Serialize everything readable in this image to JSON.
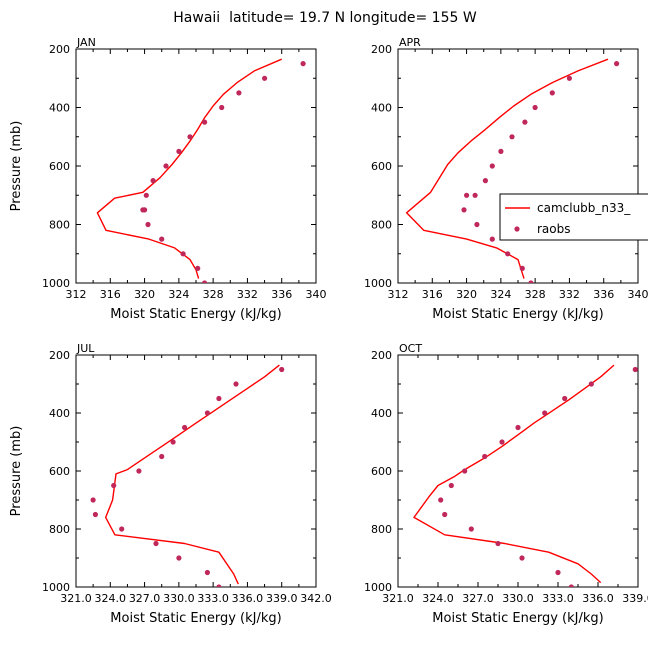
{
  "figure_title": "Hawaii  latitude= 19.7 N longitude= 155 W",
  "legend": {
    "model_label": "camclubb_n33_",
    "obs_label": "raobs"
  },
  "colors": {
    "model": "#ff0000",
    "obs": "#c0285a",
    "axis": "#000000"
  },
  "chart_data": [
    {
      "type": "line",
      "panel": "JAN",
      "title": "JAN",
      "xlabel": "Moist Static Energy (kJ/kg)",
      "ylabel": "Pressure (mb)",
      "xlim": [
        312,
        340
      ],
      "ylim": [
        1000,
        200
      ],
      "xticks": [
        312,
        316,
        320,
        324,
        328,
        332,
        336,
        340
      ],
      "xtick_labels": [
        "312",
        "316",
        "320",
        "324",
        "328",
        "332",
        "336",
        "340"
      ],
      "yticks": [
        200,
        400,
        600,
        800,
        1000
      ],
      "ytick_labels": [
        "200",
        "400",
        "600",
        "800",
        "1000"
      ],
      "series": [
        {
          "name": "camclubb_n33_",
          "kind": "line",
          "x": [
            336.0,
            332.8,
            330.8,
            329.2,
            328.0,
            327.0,
            326.2,
            325.3,
            324.3,
            323.2,
            321.8,
            319.8,
            316.5,
            314.5,
            315.5,
            320.5,
            323.5,
            325.3,
            326.0,
            326.3
          ],
          "y": [
            235,
            275,
            315,
            355,
            395,
            435,
            475,
            515,
            555,
            595,
            640,
            690,
            710,
            760,
            820,
            850,
            880,
            920,
            955,
            985
          ]
        },
        {
          "name": "raobs",
          "kind": "scatter",
          "x": [
            338.5,
            334.0,
            331.0,
            329.0,
            327.0,
            325.3,
            324.0,
            322.5,
            321.0,
            320.2,
            320.0,
            319.8,
            320.4,
            322.0,
            324.5,
            326.2,
            327.0
          ],
          "y": [
            250,
            300,
            350,
            400,
            450,
            500,
            550,
            600,
            650,
            700,
            750,
            750,
            800,
            850,
            900,
            950,
            1000
          ]
        }
      ]
    },
    {
      "type": "line",
      "panel": "APR",
      "title": "APR",
      "xlabel": "Moist Static Energy (kJ/kg)",
      "ylabel": "",
      "xlim": [
        312,
        340
      ],
      "ylim": [
        1000,
        200
      ],
      "xticks": [
        312,
        316,
        320,
        324,
        328,
        332,
        336,
        340
      ],
      "xtick_labels": [
        "312",
        "316",
        "320",
        "324",
        "328",
        "332",
        "336",
        "340"
      ],
      "yticks": [
        200,
        400,
        600,
        800,
        1000
      ],
      "ytick_labels": [
        "200",
        "400",
        "600",
        "800",
        "1000"
      ],
      "series": [
        {
          "name": "camclubb_n33_",
          "kind": "line",
          "x": [
            336.5,
            333.0,
            330.0,
            327.5,
            325.5,
            323.8,
            322.2,
            320.5,
            319.0,
            317.8,
            315.8,
            313.0,
            315.0,
            320.0,
            323.5,
            326.0,
            326.7
          ],
          "y": [
            235,
            275,
            315,
            355,
            395,
            435,
            475,
            515,
            555,
            595,
            690,
            760,
            820,
            850,
            880,
            920,
            985
          ]
        },
        {
          "name": "raobs",
          "kind": "scatter",
          "x": [
            337.5,
            332.0,
            330.0,
            328.0,
            326.8,
            325.3,
            324.0,
            323.0,
            322.2,
            321.0,
            320.0,
            319.7,
            321.2,
            323.0,
            324.8,
            326.5,
            327.5
          ],
          "y": [
            250,
            300,
            350,
            400,
            450,
            500,
            550,
            600,
            650,
            700,
            700,
            750,
            800,
            850,
            900,
            950,
            1000
          ]
        }
      ]
    },
    {
      "type": "line",
      "panel": "JUL",
      "title": "JUL",
      "xlabel": "Moist Static Energy (kJ/kg)",
      "ylabel": "Pressure (mb)",
      "xlim": [
        321,
        342
      ],
      "ylim": [
        1000,
        200
      ],
      "xticks": [
        321,
        324,
        327,
        330,
        333,
        336,
        339,
        342
      ],
      "xtick_labels": [
        "321.0",
        "324.0",
        "327.0",
        "330.0",
        "333.0",
        "336.0",
        "339.0",
        "342.0"
      ],
      "yticks": [
        200,
        400,
        600,
        800,
        1000
      ],
      "ytick_labels": [
        "200",
        "400",
        "600",
        "800",
        "1000"
      ],
      "series": [
        {
          "name": "camclubb_n33_",
          "kind": "line",
          "x": [
            338.8,
            337.5,
            336.0,
            334.5,
            333.0,
            331.5,
            330.0,
            328.5,
            327.0,
            325.5,
            324.5,
            324.2,
            323.6,
            324.4,
            330.5,
            333.5,
            334.8,
            335.2
          ],
          "y": [
            235,
            275,
            315,
            355,
            395,
            435,
            475,
            515,
            555,
            595,
            610,
            700,
            760,
            820,
            850,
            880,
            955,
            990
          ]
        },
        {
          "name": "raobs",
          "kind": "scatter",
          "x": [
            339.0,
            335.0,
            333.5,
            332.5,
            330.5,
            329.5,
            328.5,
            326.5,
            324.3,
            322.5,
            322.7,
            325.0,
            328.0,
            330.0,
            332.5,
            333.5
          ],
          "y": [
            250,
            300,
            350,
            400,
            450,
            500,
            550,
            600,
            650,
            700,
            750,
            800,
            850,
            900,
            950,
            1000
          ]
        }
      ]
    },
    {
      "type": "line",
      "panel": "OCT",
      "title": "OCT",
      "xlabel": "Moist Static Energy (kJ/kg)",
      "ylabel": "",
      "xlim": [
        321,
        339
      ],
      "ylim": [
        1000,
        200
      ],
      "xticks": [
        321,
        324,
        327,
        330,
        333,
        336,
        339
      ],
      "xtick_labels": [
        "321.0",
        "324.0",
        "327.0",
        "330.0",
        "333.0",
        "336.0",
        "339.0"
      ],
      "yticks": [
        200,
        400,
        600,
        800,
        1000
      ],
      "ytick_labels": [
        "200",
        "400",
        "600",
        "800",
        "1000"
      ],
      "series": [
        {
          "name": "camclubb_n33_",
          "kind": "line",
          "x": [
            337.2,
            336.2,
            335.0,
            333.8,
            332.5,
            331.2,
            330.0,
            328.8,
            327.5,
            326.0,
            325.2,
            324.0,
            323.3,
            322.2,
            324.5,
            329.0,
            332.3,
            334.5,
            335.5,
            336.2
          ],
          "y": [
            235,
            275,
            315,
            355,
            395,
            435,
            475,
            515,
            555,
            595,
            620,
            650,
            690,
            760,
            820,
            850,
            880,
            920,
            955,
            985
          ]
        },
        {
          "name": "raobs",
          "kind": "scatter",
          "x": [
            338.8,
            335.5,
            333.5,
            332.0,
            330.0,
            328.8,
            327.5,
            326.0,
            325.0,
            324.2,
            324.5,
            326.5,
            328.5,
            330.3,
            333.0,
            334.0
          ],
          "y": [
            250,
            300,
            350,
            400,
            450,
            500,
            550,
            600,
            650,
            700,
            750,
            800,
            850,
            900,
            950,
            1000
          ]
        }
      ]
    }
  ]
}
